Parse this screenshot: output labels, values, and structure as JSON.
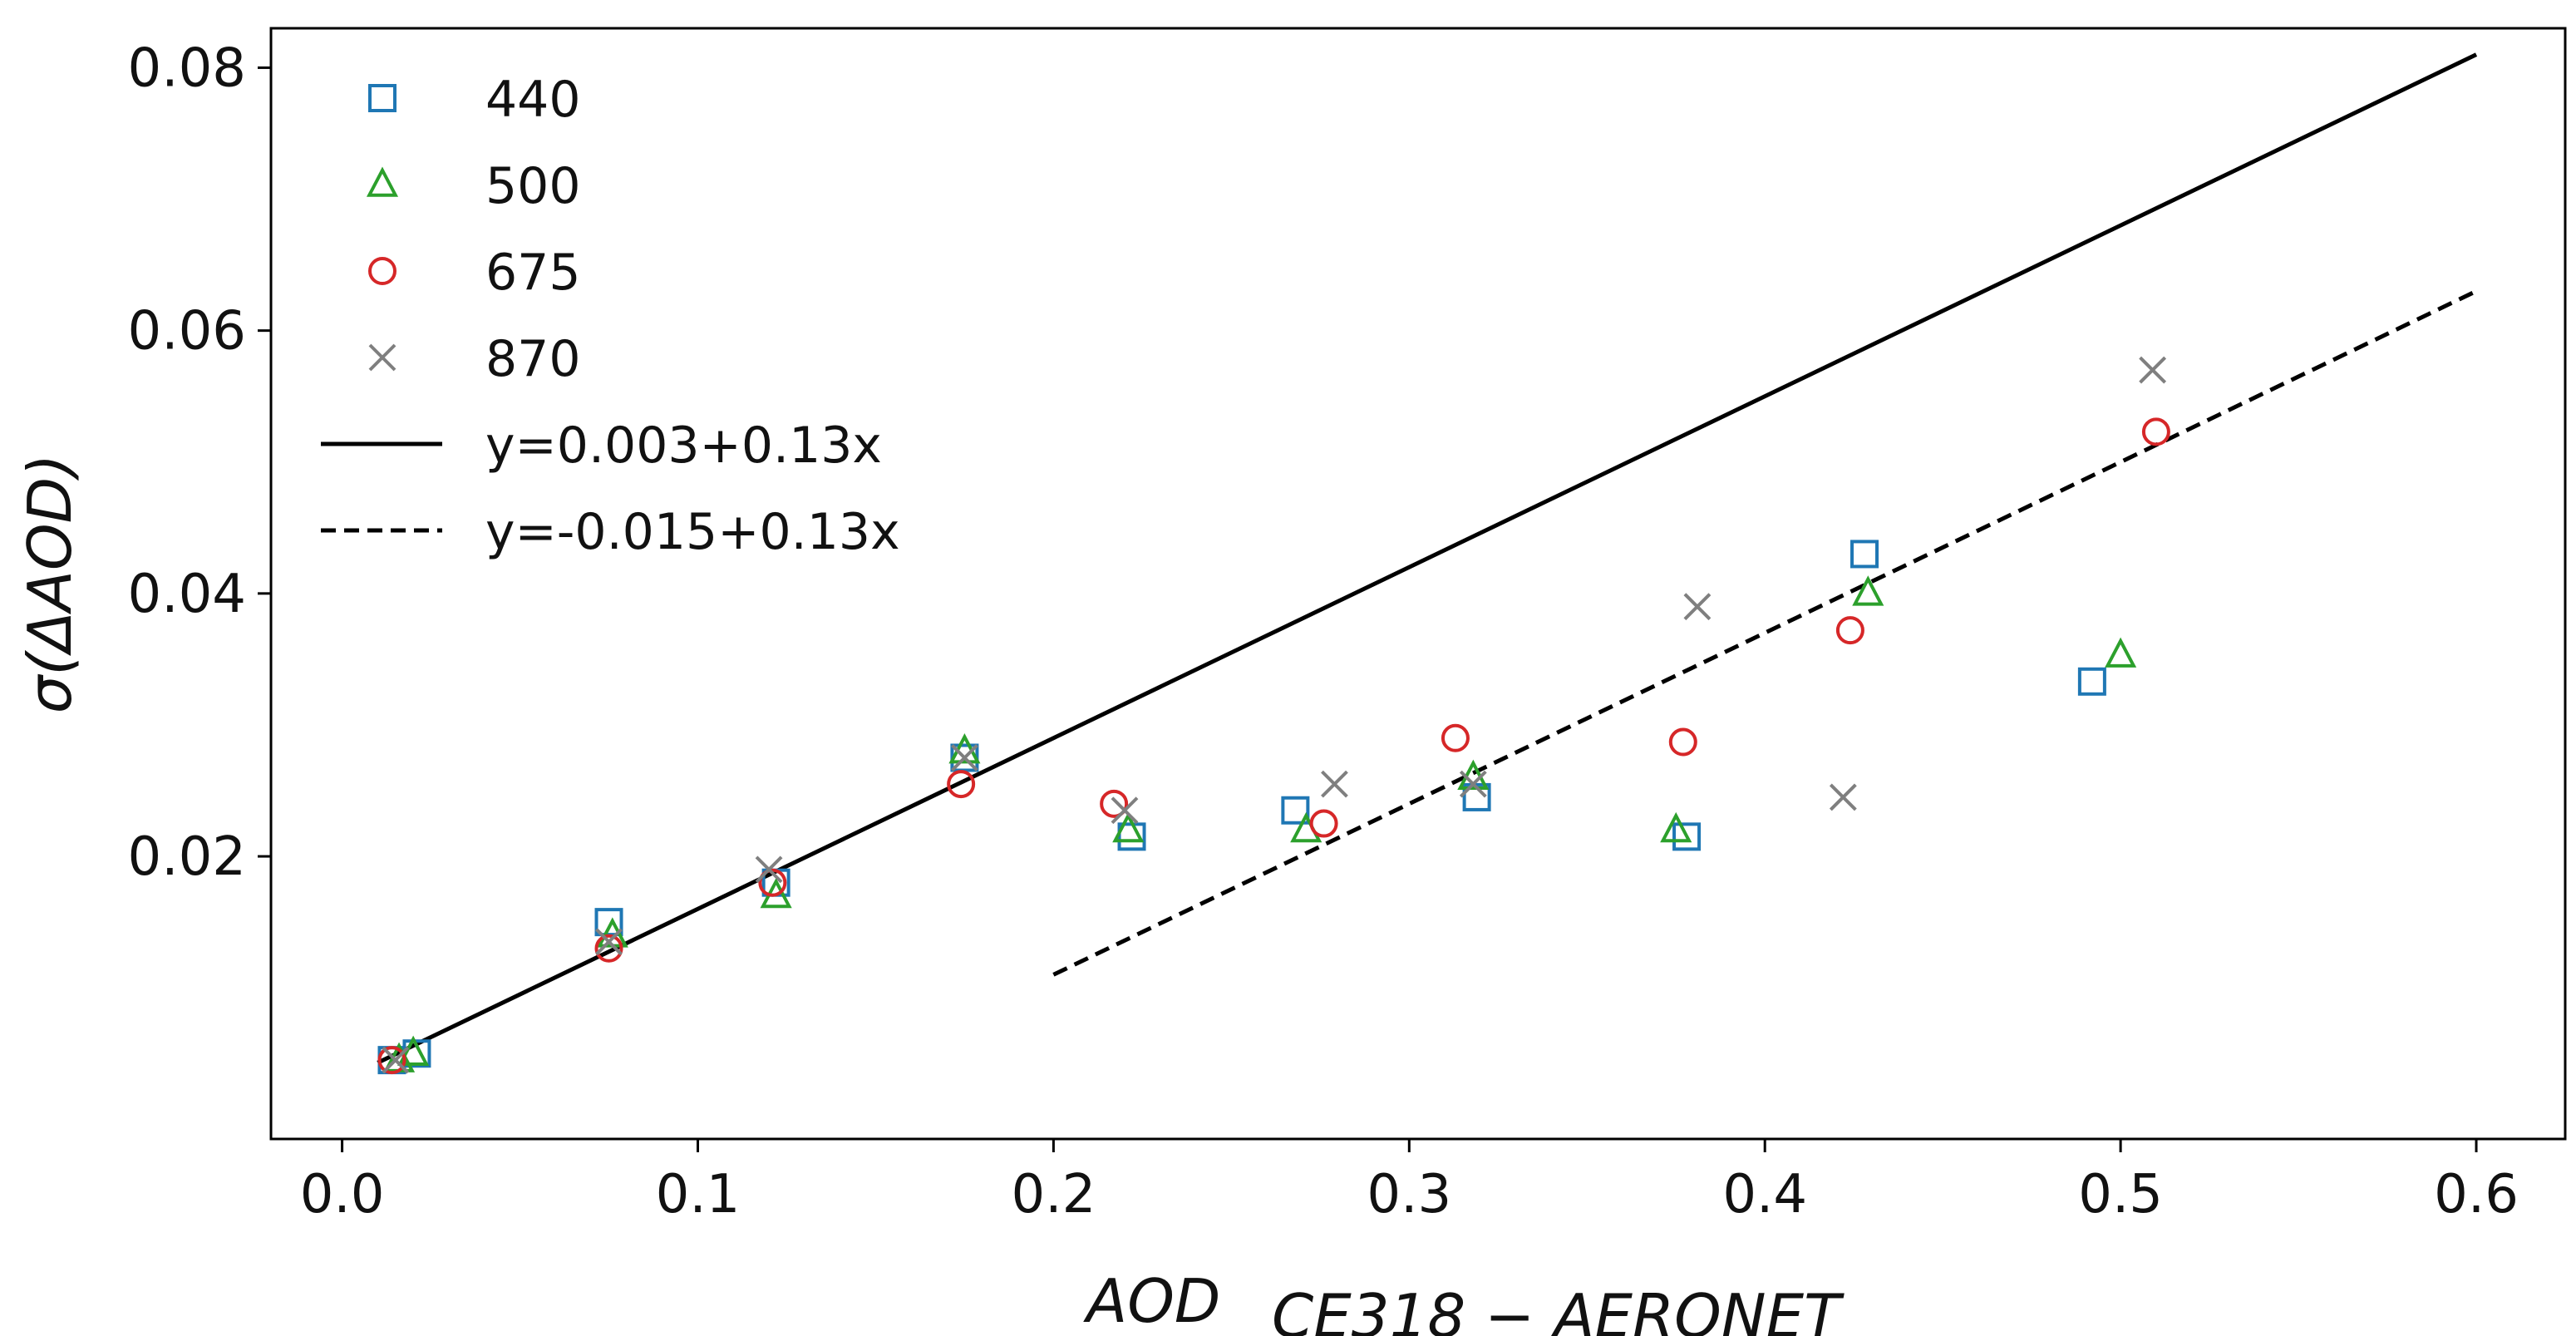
{
  "chart_data": {
    "type": "scatter",
    "title": "",
    "xlabel": "AOD",
    "xlabel_subscript": "CE318 − AERONET",
    "ylabel": "σ(ΔAOD)",
    "xlim": [
      -0.02,
      0.625
    ],
    "ylim": [
      -0.0015,
      0.083
    ],
    "xticks": [
      0.0,
      0.1,
      0.2,
      0.3,
      0.4,
      0.5,
      0.6
    ],
    "xtick_labels": [
      "0.0",
      "0.1",
      "0.2",
      "0.3",
      "0.4",
      "0.5",
      "0.6"
    ],
    "yticks": [
      0.02,
      0.04,
      0.06,
      0.08
    ],
    "ytick_labels": [
      "0.02",
      "0.04",
      "0.06",
      "0.08"
    ],
    "grid": false,
    "legend_position": "top-left",
    "series": [
      {
        "name": "440",
        "marker": "square",
        "color": "#1f77b4",
        "x": [
          0.014,
          0.021,
          0.075,
          0.122,
          0.175,
          0.222,
          0.268,
          0.319,
          0.378,
          0.428,
          0.492
        ],
        "y": [
          0.0045,
          0.005,
          0.015,
          0.018,
          0.0275,
          0.0215,
          0.0235,
          0.0245,
          0.0215,
          0.043,
          0.0333
        ]
      },
      {
        "name": "500",
        "marker": "triangle",
        "color": "#2ca02c",
        "x": [
          0.016,
          0.02,
          0.076,
          0.122,
          0.175,
          0.221,
          0.271,
          0.318,
          0.375,
          0.429,
          0.5
        ],
        "y": [
          0.0045,
          0.005,
          0.014,
          0.017,
          0.028,
          0.022,
          0.022,
          0.026,
          0.022,
          0.04,
          0.0353
        ]
      },
      {
        "name": "675",
        "marker": "circle",
        "color": "#d62728",
        "x": [
          0.014,
          0.075,
          0.121,
          0.174,
          0.217,
          0.276,
          0.313,
          0.377,
          0.424,
          0.51
        ],
        "y": [
          0.0045,
          0.013,
          0.018,
          0.0255,
          0.024,
          0.0225,
          0.029,
          0.0287,
          0.0372,
          0.0523
        ]
      },
      {
        "name": "870",
        "marker": "x",
        "color": "#7f7f7f",
        "x": [
          0.015,
          0.075,
          0.12,
          0.175,
          0.22,
          0.279,
          0.318,
          0.381,
          0.422,
          0.509
        ],
        "y": [
          0.0045,
          0.0135,
          0.019,
          0.0275,
          0.0235,
          0.0255,
          0.0255,
          0.039,
          0.0245,
          0.057
        ]
      }
    ],
    "lines": [
      {
        "name": "y=0.003+0.13x",
        "style": "solid",
        "color": "#000000",
        "intercept": 0.003,
        "slope": 0.13,
        "x_range": [
          0.01,
          0.6
        ]
      },
      {
        "name": "y=-0.015+0.13x",
        "style": "dashed",
        "color": "#000000",
        "intercept": -0.015,
        "slope": 0.13,
        "x_range": [
          0.2,
          0.6
        ]
      }
    ]
  }
}
